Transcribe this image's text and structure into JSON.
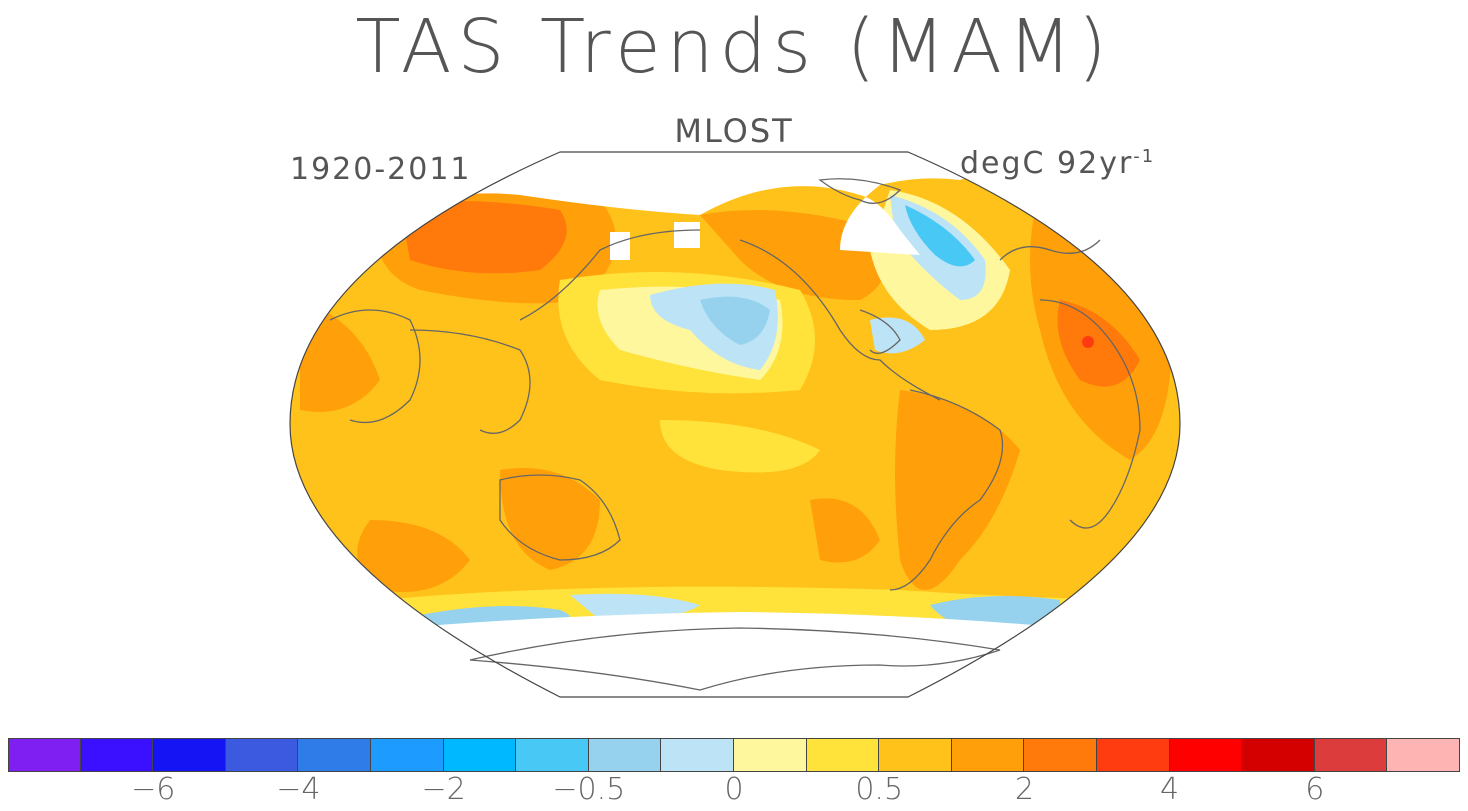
{
  "title": "TAS Trends (MAM)",
  "subtitle": "MLOST",
  "period": "1920-2011",
  "units_base": "degC 92yr",
  "units_exp": "-1",
  "colorbar": {
    "colors": [
      "#7f1ff2",
      "#3b0fff",
      "#1414f5",
      "#3c5ae0",
      "#2f7be8",
      "#1e9bff",
      "#00b8ff",
      "#48c8f5",
      "#96d2ee",
      "#bde3f6",
      "#fff79e",
      "#ffe23a",
      "#ffc21a",
      "#ffa00a",
      "#ff7a0a",
      "#ff3c10",
      "#ff0000",
      "#d40000",
      "#dc3c3c",
      "#ffb4b4"
    ],
    "tick_labels": [
      "−6",
      "−4",
      "−2",
      "−0.5",
      "0",
      "0.5",
      "2",
      "4",
      "6"
    ]
  },
  "chart_data": {
    "type": "map",
    "title": "TAS Trends (MAM)",
    "subtitle": "MLOST",
    "period": "1920-2011",
    "units": "degC 92yr-1",
    "projection": "Robinson"
  }
}
